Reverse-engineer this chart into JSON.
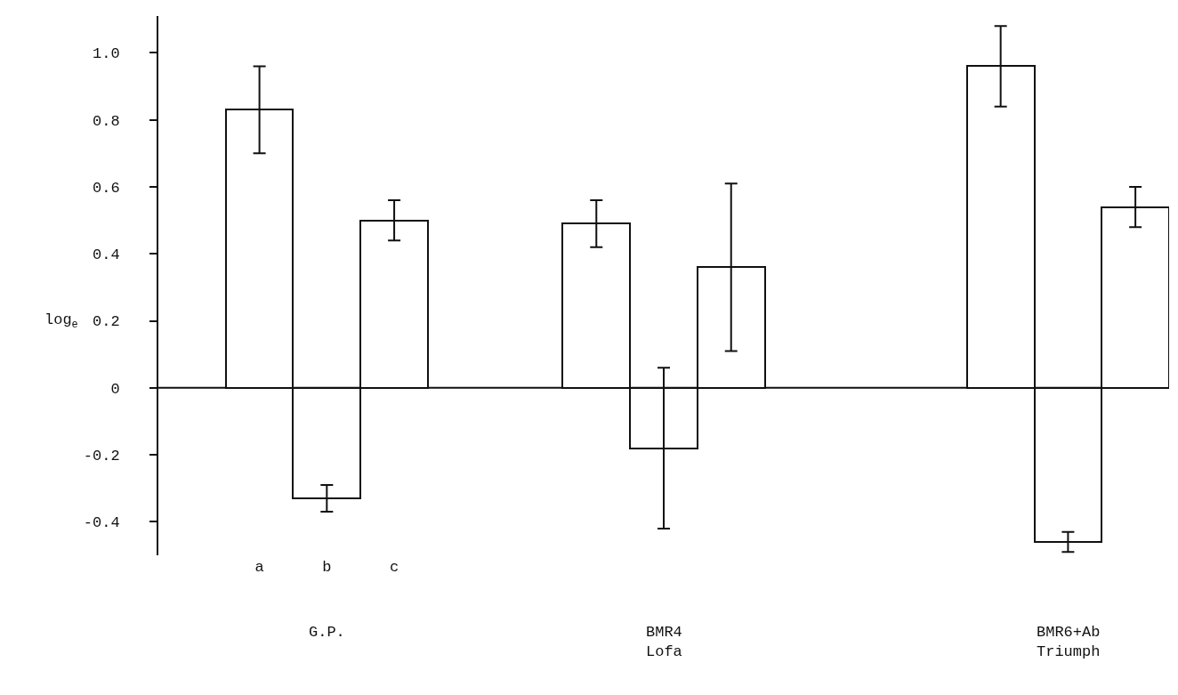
{
  "chart_data": {
    "type": "bar",
    "ylabel": "log$_{e}$",
    "categories": [
      null,
      "a",
      "b",
      "c",
      null,
      null,
      null,
      null,
      null,
      null,
      null,
      null,
      null,
      null,
      null
    ],
    "values": [
      null,
      0.83,
      -0.33,
      0.5,
      null,
      null,
      0.49,
      -0.18,
      0.36,
      null,
      null,
      null,
      0.96,
      -0.46,
      0.54
    ],
    "errors": [
      null,
      0.13,
      0.04,
      0.06,
      null,
      null,
      0.07,
      0.24,
      0.25,
      null,
      null,
      null,
      0.12,
      0.03,
      0.06
    ],
    "color": "#ffffff",
    "annotations": [
      "G.P.",
      "BMR4\nLofa",
      "BMR6+Ab\nTriumph"
    ],
    "ylim": [
      -0.5,
      1.11
    ],
    "yticks": [
      -0.4,
      -0.2,
      0,
      0.2,
      0.4,
      0.6,
      {
        "value": 1,
        "label": "1.0"
      },
      0.8
    ],
    "ref_lines": [
      {
        "axis": "y",
        "value": 0,
        "color": "#111111"
      }
    ],
    "grid": false
  }
}
